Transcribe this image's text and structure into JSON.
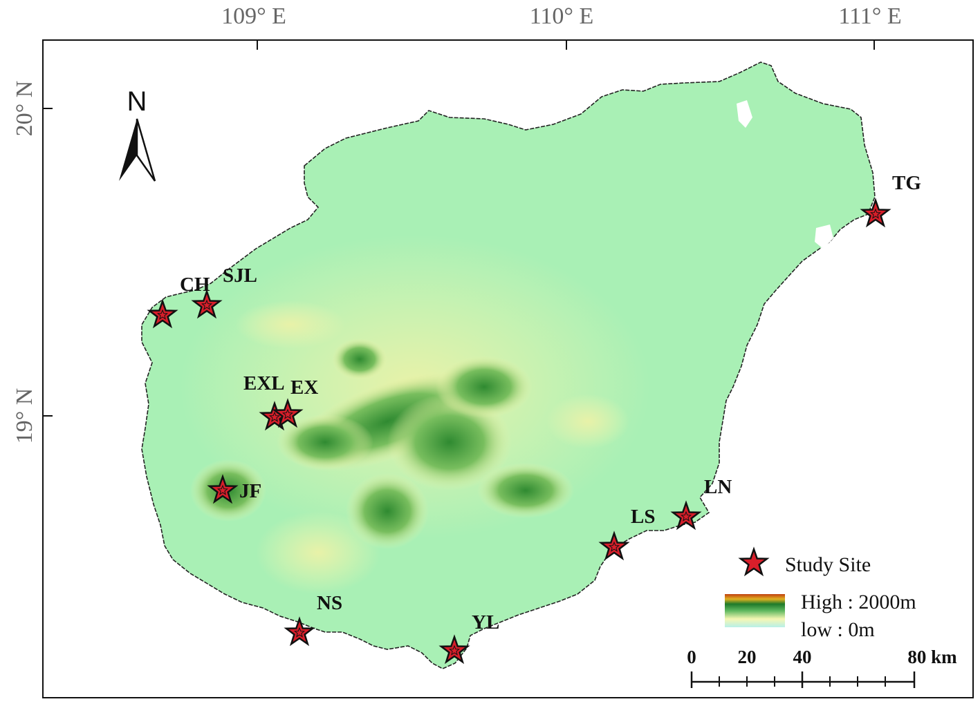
{
  "colors": {
    "land_low": "#a9f0b5",
    "land_mid": "#f3f6b0",
    "land_high": "#2e8b2e",
    "marker_fill": "#d81e2a",
    "marker_stroke": "#111111",
    "frame": "#111111"
  },
  "graticule": {
    "longitude_labels": [
      "109° E",
      "110° E",
      "111° E"
    ],
    "latitude_labels": [
      "20° N",
      "19° N"
    ]
  },
  "north_arrow": {
    "label": "N",
    "icon": "north-arrow-icon"
  },
  "sites": [
    {
      "code": "TG"
    },
    {
      "code": "SJL"
    },
    {
      "code": "CH"
    },
    {
      "code": "EXL"
    },
    {
      "code": "EX"
    },
    {
      "code": "JF"
    },
    {
      "code": "LN"
    },
    {
      "code": "LS"
    },
    {
      "code": "NS"
    },
    {
      "code": "YL"
    }
  ],
  "legend": {
    "study_site": "Study Site",
    "high": "High : 2000m",
    "low": "low : 0m",
    "marker_icon": "star-icon"
  },
  "scale_bar": {
    "labels": [
      "0",
      "20",
      "40",
      "80 km"
    ]
  }
}
